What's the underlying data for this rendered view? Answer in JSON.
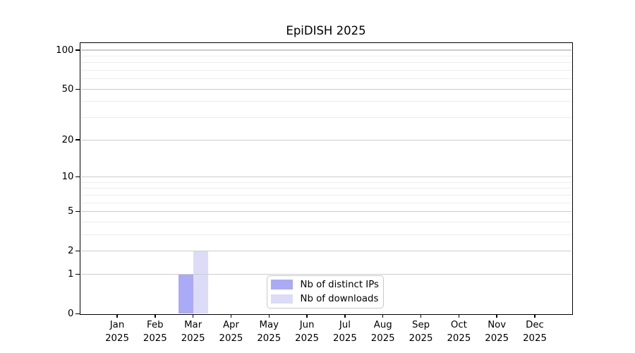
{
  "chart_data": {
    "type": "bar",
    "title": "EpiDISH 2025",
    "categories": [
      "Jan",
      "Feb",
      "Mar",
      "Apr",
      "May",
      "Jun",
      "Jul",
      "Aug",
      "Sep",
      "Oct",
      "Nov",
      "Dec"
    ],
    "x_tick_second_line": "2025",
    "series": [
      {
        "name": "Nb of distinct IPs",
        "color": "#aaaaf6",
        "values": [
          0,
          0,
          1,
          0,
          0,
          0,
          0,
          0,
          0,
          0,
          0,
          0
        ]
      },
      {
        "name": "Nb of downloads",
        "color": "#dcdcf8",
        "values": [
          0,
          0,
          2,
          0,
          0,
          0,
          0,
          0,
          0,
          0,
          0,
          0
        ]
      }
    ],
    "y_axis": {
      "scale": "log1p",
      "major_ticks": [
        0,
        1,
        2,
        5,
        10,
        20,
        50,
        100
      ],
      "minor_ticks": [
        3,
        4,
        6,
        7,
        8,
        9,
        30,
        40,
        60,
        70,
        80,
        90
      ],
      "ylim": [
        0,
        114
      ]
    },
    "legend": {
      "position": "lower-center"
    },
    "grid": {
      "major_color": "#cccccc",
      "minor_color": "#ededed"
    }
  }
}
